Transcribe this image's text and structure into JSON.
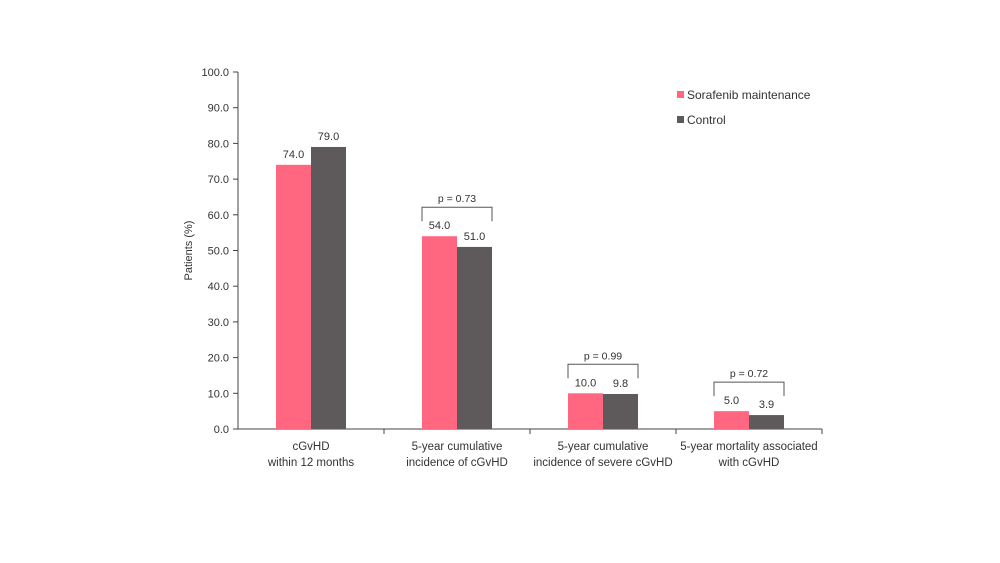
{
  "chart_data": {
    "type": "bar",
    "ylabel": "Patients (%)",
    "xlabel": "",
    "ylim": [
      0,
      100
    ],
    "yticks": [
      "0.0",
      "10.0",
      "20.0",
      "30.0",
      "40.0",
      "50.0",
      "60.0",
      "70.0",
      "80.0",
      "90.0",
      "100.0"
    ],
    "categories": [
      [
        "cGvHD",
        "within 12 months"
      ],
      [
        "5-year cumulative",
        "incidence of cGvHD"
      ],
      [
        "5-year cumulative",
        "incidence of severe cGvHD"
      ],
      [
        "5-year mortality associated",
        "with cGvHD"
      ]
    ],
    "series": [
      {
        "name": "Sorafenib maintenance",
        "color": "#ff6680",
        "values": [
          74.0,
          54.0,
          10.0,
          5.0
        ],
        "labels": [
          "74.0",
          "54.0",
          "10.0",
          "5.0"
        ]
      },
      {
        "name": "Control",
        "color": "#5e5a5c",
        "values": [
          79.0,
          51.0,
          9.8,
          3.9
        ],
        "labels": [
          "79.0",
          "51.0",
          "9.8",
          "3.9"
        ]
      }
    ],
    "p_values": [
      null,
      "p = 0.73",
      "p = 0.99",
      "p = 0.72"
    ],
    "legend": "top-right",
    "grid": false
  }
}
